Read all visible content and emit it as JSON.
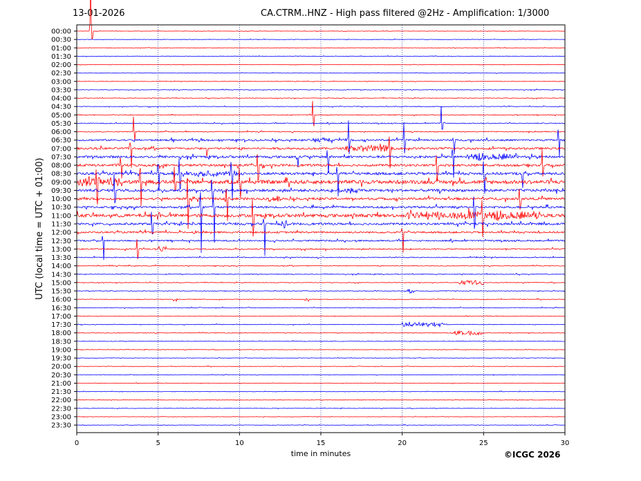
{
  "header": {
    "date": "13-01-2026",
    "title": "CA.CTRM..HNZ - High pass filtered @2Hz - Amplification: 1/3000"
  },
  "credit": "©ICGC 2026",
  "colors": {
    "trace_a": "#ff0000",
    "trace_b": "#0000ff",
    "grid": "#000080",
    "axis": "#000000"
  },
  "chart_data": {
    "type": "line",
    "xlabel": "time in minutes",
    "ylabel": "UTC (local time = UTC + 01:00)",
    "xlim": [
      0,
      30
    ],
    "x_ticks": [
      0,
      5,
      10,
      15,
      20,
      25,
      30
    ],
    "grid": "vertical dotted at each x tick",
    "rows": [
      "00:00",
      "00:30",
      "01:00",
      "01:30",
      "02:00",
      "02:30",
      "03:00",
      "03:30",
      "04:00",
      "04:30",
      "05:00",
      "05:30",
      "06:00",
      "06:30",
      "07:00",
      "07:30",
      "08:00",
      "08:30",
      "09:00",
      "09:30",
      "10:00",
      "10:30",
      "11:00",
      "11:30",
      "12:00",
      "12:30",
      "13:00",
      "13:30",
      "14:00",
      "14:30",
      "15:00",
      "15:30",
      "16:00",
      "16:30",
      "17:00",
      "17:30",
      "18:00",
      "18:30",
      "19:00",
      "19:30",
      "20:00",
      "20:30",
      "21:00",
      "21:30",
      "22:00",
      "22:30",
      "23:00",
      "23:30"
    ],
    "row_colors": "alternating red (00:00) / blue (00:30)",
    "row_noise": [
      0.3,
      0.3,
      0.3,
      0.3,
      0.3,
      0.3,
      0.3,
      0.4,
      0.4,
      0.4,
      0.5,
      0.6,
      0.6,
      1.2,
      1.4,
      1.6,
      1.6,
      1.8,
      2.6,
      1.8,
      1.6,
      1.4,
      2.2,
      1.5,
      1.2,
      1.0,
      0.8,
      0.6,
      0.5,
      0.5,
      0.4,
      0.4,
      0.4,
      0.4,
      0.3,
      0.4,
      0.4,
      0.3,
      0.3,
      0.3,
      0.3,
      0.3,
      0.3,
      0.3,
      0.3,
      0.3,
      0.3,
      0.3
    ],
    "events": [
      {
        "row": 0,
        "t": 0.85,
        "amp": 70,
        "dir": 1
      },
      {
        "row": 0,
        "t": 0.95,
        "amp": 20,
        "dir": -1
      },
      {
        "row": 10,
        "t": 14.5,
        "amp": 30,
        "dir": 1
      },
      {
        "row": 10,
        "t": 14.55,
        "amp": 28,
        "dir": -1
      },
      {
        "row": 12,
        "t": 3.5,
        "amp": 28,
        "dir": 1
      },
      {
        "row": 12,
        "t": 3.55,
        "amp": 22,
        "dir": -1
      },
      {
        "row": 11,
        "t": 22.4,
        "amp": 25,
        "dir": 1
      },
      {
        "row": 11,
        "t": 22.45,
        "amp": 20,
        "dir": -1
      },
      {
        "row": 13,
        "t": 16.7,
        "amp": 25,
        "dir": 1
      },
      {
        "row": 13,
        "t": 16.75,
        "amp": 25,
        "dir": -1
      },
      {
        "row": 13,
        "t": 20.1,
        "amp": 25,
        "dir": 1
      },
      {
        "row": 13,
        "t": 20.15,
        "amp": 28,
        "dir": -1
      },
      {
        "row": 13,
        "t": 29.6,
        "amp": 25,
        "dir": 1
      },
      {
        "row": 13,
        "t": 29.65,
        "amp": 28,
        "dir": -1
      },
      {
        "row": 13,
        "t": 23.2,
        "amp": 22,
        "dir": -1
      },
      {
        "row": 14,
        "t": 19.2,
        "amp": 20,
        "dir": 1
      },
      {
        "row": 14,
        "t": 19.25,
        "amp": 30,
        "dir": -1
      },
      {
        "row": 14,
        "t": 8,
        "amp": 18,
        "dir": -1
      },
      {
        "row": 14,
        "t": 3.3,
        "amp": 18,
        "dir": 1
      },
      {
        "row": 14,
        "t": 3.35,
        "amp": 30,
        "dir": -1
      },
      {
        "row": 15,
        "t": 23.1,
        "amp": 20,
        "dir": 1
      },
      {
        "row": 15,
        "t": 23.15,
        "amp": 35,
        "dir": -1
      },
      {
        "row": 15,
        "t": 13.6,
        "amp": 15,
        "dir": -1
      },
      {
        "row": 15,
        "t": 15.4,
        "amp": 15,
        "dir": 1
      },
      {
        "row": 15,
        "t": 15.45,
        "amp": 30,
        "dir": -1
      },
      {
        "row": 16,
        "t": 2.7,
        "amp": 20,
        "dir": 1
      },
      {
        "row": 16,
        "t": 2.75,
        "amp": 25,
        "dir": -1
      },
      {
        "row": 16,
        "t": 11.1,
        "amp": 20,
        "dir": 1
      },
      {
        "row": 16,
        "t": 11.15,
        "amp": 40,
        "dir": -1
      },
      {
        "row": 16,
        "t": 22.1,
        "amp": 20,
        "dir": 1
      },
      {
        "row": 16,
        "t": 22.15,
        "amp": 40,
        "dir": -1
      },
      {
        "row": 16,
        "t": 28.6,
        "amp": 25,
        "dir": 1
      },
      {
        "row": 16,
        "t": 28.65,
        "amp": 30,
        "dir": -1
      },
      {
        "row": 17,
        "t": 5.0,
        "amp": 30,
        "dir": 1
      },
      {
        "row": 17,
        "t": 5.05,
        "amp": 25,
        "dir": -1
      },
      {
        "row": 17,
        "t": 6.3,
        "amp": 30,
        "dir": 1
      },
      {
        "row": 17,
        "t": 6.35,
        "amp": 40,
        "dir": -1
      },
      {
        "row": 17,
        "t": 9.5,
        "amp": 30,
        "dir": 1
      },
      {
        "row": 17,
        "t": 9.55,
        "amp": 50,
        "dir": -1
      },
      {
        "row": 17,
        "t": 16.0,
        "amp": 20,
        "dir": 1
      },
      {
        "row": 17,
        "t": 16.05,
        "amp": 40,
        "dir": -1
      },
      {
        "row": 17,
        "t": 25.0,
        "amp": 25,
        "dir": 1
      },
      {
        "row": 17,
        "t": 25.05,
        "amp": 40,
        "dir": -1
      },
      {
        "row": 17,
        "t": 27.4,
        "amp": 25,
        "dir": -1
      },
      {
        "row": 18,
        "t": 1.2,
        "amp": 30,
        "dir": 1
      },
      {
        "row": 18,
        "t": 1.25,
        "amp": 50,
        "dir": -1
      },
      {
        "row": 18,
        "t": 3.9,
        "amp": 40,
        "dir": 1
      },
      {
        "row": 18,
        "t": 3.95,
        "amp": 35,
        "dir": -1
      },
      {
        "row": 18,
        "t": 6.0,
        "amp": 25,
        "dir": 1
      },
      {
        "row": 18,
        "t": 6.05,
        "amp": 30,
        "dir": -1
      },
      {
        "row": 18,
        "t": 10.0,
        "amp": 30,
        "dir": 1
      },
      {
        "row": 18,
        "t": 10.05,
        "amp": 40,
        "dir": -1
      },
      {
        "row": 19,
        "t": 2.3,
        "amp": 30,
        "dir": 1
      },
      {
        "row": 19,
        "t": 2.35,
        "amp": 40,
        "dir": -1
      },
      {
        "row": 19,
        "t": 8.3,
        "amp": 25,
        "dir": 1
      },
      {
        "row": 19,
        "t": 8.35,
        "amp": 35,
        "dir": -1
      },
      {
        "row": 20,
        "t": 6.8,
        "amp": 30,
        "dir": 1
      },
      {
        "row": 20,
        "t": 6.85,
        "amp": 50,
        "dir": -1
      },
      {
        "row": 20,
        "t": 9.2,
        "amp": 30,
        "dir": 1
      },
      {
        "row": 20,
        "t": 9.25,
        "amp": 50,
        "dir": -1
      },
      {
        "row": 20,
        "t": 27.2,
        "amp": 20,
        "dir": 1
      },
      {
        "row": 20,
        "t": 27.25,
        "amp": 35,
        "dir": -1
      },
      {
        "row": 21,
        "t": 7.6,
        "amp": 30,
        "dir": 1
      },
      {
        "row": 21,
        "t": 7.65,
        "amp": 60,
        "dir": -1
      },
      {
        "row": 21,
        "t": 8.4,
        "amp": 30,
        "dir": 1
      },
      {
        "row": 21,
        "t": 8.45,
        "amp": 60,
        "dir": -1
      },
      {
        "row": 21,
        "t": 24.4,
        "amp": 20,
        "dir": 1
      },
      {
        "row": 21,
        "t": 24.45,
        "amp": 50,
        "dir": -1
      },
      {
        "row": 22,
        "t": 10.8,
        "amp": 25,
        "dir": 1
      },
      {
        "row": 22,
        "t": 10.85,
        "amp": 50,
        "dir": -1
      },
      {
        "row": 22,
        "t": 20.5,
        "amp": 10,
        "dir": 1
      },
      {
        "row": 22,
        "t": 24.9,
        "amp": 20,
        "dir": 1
      },
      {
        "row": 22,
        "t": 24.95,
        "amp": 40,
        "dir": -1
      },
      {
        "row": 23,
        "t": 11.5,
        "amp": 20,
        "dir": 1
      },
      {
        "row": 23,
        "t": 11.55,
        "amp": 50,
        "dir": -1
      },
      {
        "row": 23,
        "t": 4.6,
        "amp": 20,
        "dir": 1
      },
      {
        "row": 23,
        "t": 4.65,
        "amp": 30,
        "dir": -1
      },
      {
        "row": 24,
        "t": 20.0,
        "amp": 15,
        "dir": 1
      },
      {
        "row": 24,
        "t": 20.05,
        "amp": 35,
        "dir": -1
      },
      {
        "row": 25,
        "t": 1.6,
        "amp": 15,
        "dir": 1
      },
      {
        "row": 25,
        "t": 1.65,
        "amp": 30,
        "dir": -1
      },
      {
        "row": 26,
        "t": 3.7,
        "amp": 15,
        "dir": 1
      },
      {
        "row": 26,
        "t": 3.75,
        "amp": 25,
        "dir": -1
      }
    ],
    "bursts": [
      {
        "row": 18,
        "t0": 0.1,
        "t1": 2.8,
        "amp": 6
      },
      {
        "row": 22,
        "t0": 20.3,
        "t1": 28.5,
        "amp": 5
      },
      {
        "row": 23,
        "t0": 12.5,
        "t1": 13.0,
        "amp": 5
      },
      {
        "row": 14,
        "t0": 16.5,
        "t1": 19.5,
        "amp": 4
      },
      {
        "row": 19,
        "t0": 16.0,
        "t1": 17.5,
        "amp": 3
      },
      {
        "row": 20,
        "t0": 11.8,
        "t1": 12.6,
        "amp": 4
      },
      {
        "row": 15,
        "t0": 24.0,
        "t1": 27.0,
        "amp": 4
      },
      {
        "row": 17,
        "t0": 5.5,
        "t1": 10.0,
        "amp": 3
      },
      {
        "row": 35,
        "t0": 19.9,
        "t1": 22.5,
        "amp": 3
      },
      {
        "row": 36,
        "t0": 23.0,
        "t1": 25.0,
        "amp": 3
      },
      {
        "row": 32,
        "t0": 5.9,
        "t1": 6.2,
        "amp": 3
      },
      {
        "row": 32,
        "t0": 14.0,
        "t1": 14.3,
        "amp": 3
      },
      {
        "row": 31,
        "t0": 20.3,
        "t1": 20.7,
        "amp": 3
      },
      {
        "row": 30,
        "t0": 23.5,
        "t1": 25.0,
        "amp": 3
      },
      {
        "row": 13,
        "t0": 14.5,
        "t1": 16.0,
        "amp": 3
      },
      {
        "row": 26,
        "t0": 4.8,
        "t1": 5.5,
        "amp": 4
      }
    ]
  }
}
